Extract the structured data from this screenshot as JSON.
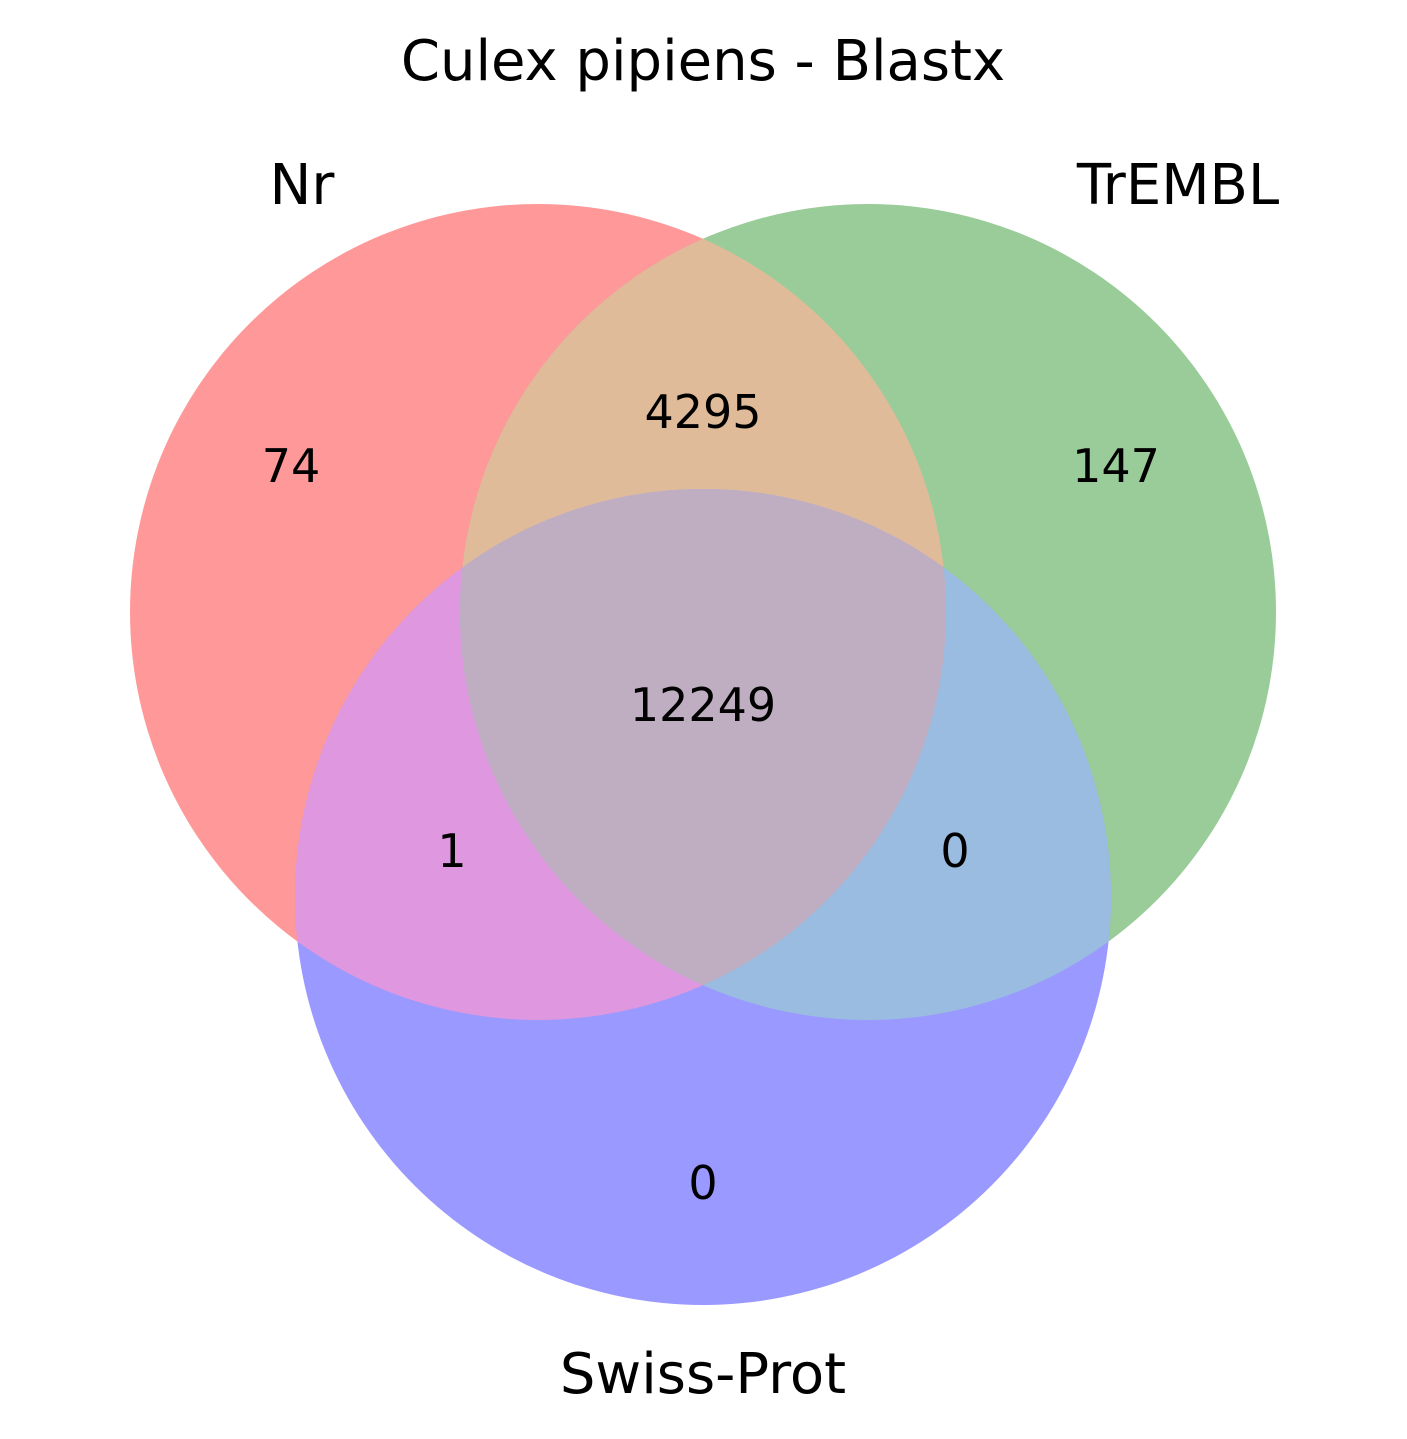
{
  "title": "Culex pipiens - Blastx",
  "sets": [
    {
      "name": "Nr",
      "color": "#ff9999"
    },
    {
      "name": "TrEMBL",
      "color": "#99cc99"
    },
    {
      "name": "Swiss-Prot",
      "color": "#9999ff"
    }
  ],
  "regions": {
    "nr_only": "74",
    "trembl_only": "147",
    "nr_trembl": "4295",
    "all_three": "12249",
    "nr_swissprot": "1",
    "trembl_swissprot": "0",
    "swissprot_only": "0"
  },
  "region_colors": {
    "nr_trembl": "#e0bb99",
    "nr_swissprot": "#df97df",
    "trembl_swissprot": "#9abce0",
    "all_three": "#bfadc2"
  }
}
